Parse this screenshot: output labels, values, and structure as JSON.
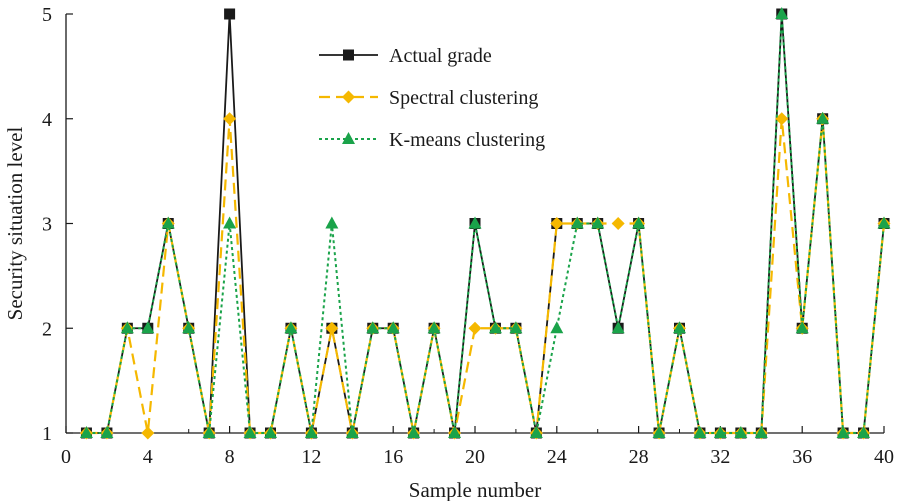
{
  "chart_data": {
    "type": "line",
    "title": "",
    "xlabel": "Sample number",
    "ylabel": "Security situation level",
    "xlim": [
      0,
      40
    ],
    "ylim": [
      1,
      5
    ],
    "xticks": [
      0,
      4,
      8,
      12,
      16,
      20,
      24,
      28,
      32,
      36,
      40
    ],
    "yticks": [
      1,
      2,
      3,
      4,
      5
    ],
    "x": [
      1,
      2,
      3,
      4,
      5,
      6,
      7,
      8,
      9,
      10,
      11,
      12,
      13,
      14,
      15,
      16,
      17,
      18,
      19,
      20,
      21,
      22,
      23,
      24,
      25,
      26,
      27,
      28,
      29,
      30,
      31,
      32,
      33,
      34,
      35,
      36,
      37,
      38,
      39,
      40
    ],
    "series": [
      {
        "name": "Actual grade",
        "color": "#1a1a1a",
        "marker": "square",
        "line": "solid",
        "values": [
          1,
          1,
          2,
          2,
          3,
          2,
          1,
          5,
          1,
          1,
          2,
          1,
          2,
          1,
          2,
          2,
          1,
          2,
          1,
          3,
          2,
          2,
          1,
          3,
          3,
          3,
          2,
          3,
          1,
          2,
          1,
          1,
          1,
          1,
          5,
          2,
          4,
          1,
          1,
          3
        ]
      },
      {
        "name": "Spectral clustering",
        "color": "#f5b800",
        "marker": "diamond",
        "line": "dashed",
        "values": [
          1,
          1,
          2,
          1,
          3,
          2,
          1,
          4,
          1,
          1,
          2,
          1,
          2,
          1,
          2,
          2,
          1,
          2,
          1,
          2,
          2,
          2,
          1,
          3,
          3,
          3,
          3,
          3,
          1,
          2,
          1,
          1,
          1,
          1,
          4,
          2,
          4,
          1,
          1,
          3
        ]
      },
      {
        "name": "K-means clustering",
        "color": "#1aa34a",
        "marker": "triangle",
        "line": "dotted",
        "values": [
          1,
          1,
          2,
          2,
          3,
          2,
          1,
          3,
          1,
          1,
          2,
          1,
          3,
          1,
          2,
          2,
          1,
          2,
          1,
          3,
          2,
          2,
          1,
          2,
          3,
          3,
          2,
          3,
          1,
          2,
          1,
          1,
          1,
          1,
          5,
          2,
          4,
          1,
          1,
          3
        ]
      }
    ],
    "legend_position": "top-center"
  }
}
